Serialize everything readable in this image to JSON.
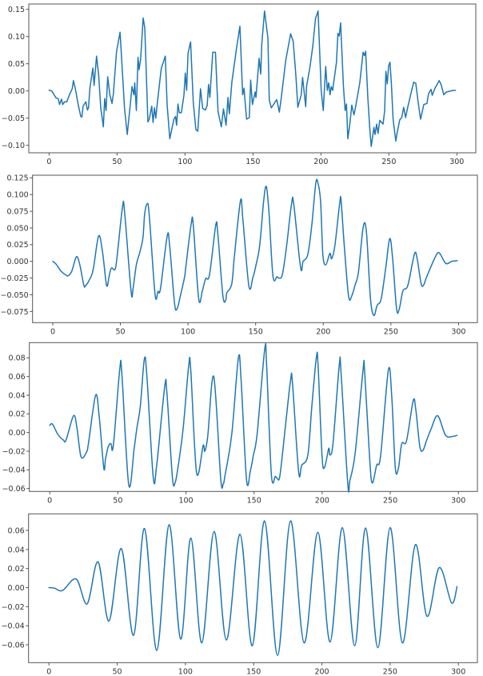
{
  "chart_data": [
    {
      "type": "line",
      "title": "",
      "xlabel": "",
      "ylabel": "",
      "smooth": false,
      "color": "#1f77b4",
      "xlim": [
        -14.95,
        313.95
      ],
      "ylim": [
        -0.1137,
        0.1598
      ],
      "xticks": [
        0,
        50,
        100,
        150,
        200,
        250,
        300
      ],
      "xtick_labels": [
        "0",
        "50",
        "100",
        "150",
        "200",
        "250",
        "300"
      ],
      "yticks": [
        -0.1,
        -0.05,
        0.0,
        0.05,
        0.1,
        0.15
      ],
      "ytick_labels": [
        "−0.10",
        "−0.05",
        "0.00",
        "0.05",
        "0.10",
        "0.15"
      ],
      "x": [
        0,
        2,
        5.1,
        6.7,
        7.7,
        9.1,
        10,
        11.4,
        13,
        15,
        17,
        17.9,
        19.3,
        21.4,
        23.3,
        24.1,
        25,
        27,
        28.2,
        29,
        30,
        32.2,
        33.1,
        34.9,
        36.5,
        38,
        39.9,
        40.9,
        41.9,
        43.1,
        44.7,
        46.3,
        47.3,
        49.6,
        52.2,
        55.5,
        57.5,
        59.8,
        61,
        62.4,
        63,
        64.2,
        65.4,
        66.2,
        67.4,
        69.2,
        70.4,
        72.7,
        73.7,
        75.5,
        76.5,
        77.5,
        78.5,
        79.5,
        82,
        82.6,
        85.5,
        86.8,
        88.8,
        91.8,
        93,
        93.8,
        94.8,
        95.8,
        97.3,
        99.2,
        100.2,
        101.2,
        102.2,
        104.1,
        106.1,
        108,
        109.4,
        111.4,
        113,
        115,
        116.3,
        117.3,
        118.3,
        120.4,
        122.4,
        124.3,
        126.7,
        128.3,
        130.2,
        131.6,
        132.6,
        134.5,
        138,
        140.4,
        142.4,
        143.4,
        145.3,
        147.3,
        148.3,
        149.6,
        151.6,
        152.2,
        154.5,
        155.7,
        156.5,
        158.5,
        161,
        162,
        163.5,
        167.5,
        169.4,
        170.8,
        174.1,
        177.7,
        179.6,
        181.6,
        183,
        185.5,
        186.5,
        188.8,
        189.4,
        192,
        194,
        196,
        197.9,
        200.2,
        201.7,
        203.5,
        204.7,
        205.7,
        206.7,
        207.6,
        208.6,
        211.4,
        212.5,
        213.5,
        214.5,
        216.5,
        217.8,
        218.8,
        219.8,
        221.4,
        222.7,
        224.3,
        225.3,
        228.6,
        231,
        232,
        232.9,
        234.5,
        235.9,
        237,
        239,
        239.8,
        241,
        242,
        243.3,
        245.7,
        246.9,
        247.8,
        248.8,
        249.8,
        250.8,
        251.8,
        253.1,
        255.1,
        256.1,
        258,
        259.4,
        260.9,
        262.3,
        263.5,
        266.3,
        268.2,
        269.8,
        271.4,
        273.3,
        275.7,
        278,
        279.2,
        281,
        281.9,
        283.9,
        285.5,
        287,
        288.4,
        290.4,
        292.3,
        297.2,
        299
      ],
      "y": [
        0.0015,
        0,
        -0.013,
        -0.014,
        -0.025,
        -0.015,
        -0.025,
        -0.02,
        -0.02,
        -0.007,
        0.004,
        0.019,
        0.004,
        -0.025,
        -0.047,
        -0.048,
        -0.028,
        -0.02,
        -0.035,
        -0.031,
        0.005,
        0.042,
        0.01,
        0.064,
        0.028,
        -0.031,
        -0.066,
        -0.014,
        -0.036,
        0.026,
        -0.007,
        -0.023,
        -0.005,
        0.072,
        0.108,
        -0.032,
        -0.08,
        -0.023,
        0.008,
        -0.007,
        0.015,
        -0.036,
        0.062,
        0.039,
        0.06,
        0.134,
        0.116,
        -0.057,
        -0.052,
        -0.028,
        -0.058,
        -0.031,
        -0.05,
        -0.025,
        0.03,
        0.042,
        0.064,
        -0.024,
        -0.088,
        -0.052,
        -0.047,
        -0.063,
        -0.024,
        -0.04,
        -0.04,
        -0.008,
        0.033,
        0.001,
        0.069,
        0.09,
        -0.022,
        -0.071,
        -0.074,
        0.004,
        -0.032,
        -0.035,
        -0.027,
        0.012,
        -0.012,
        0.071,
        0.071,
        -0.038,
        -0.066,
        -0.033,
        -0.063,
        -0.012,
        -0.042,
        0.017,
        0.08,
        0.119,
        -0.007,
        0.005,
        -0.052,
        -0.049,
        0.02,
        -0.025,
        -0.002,
        -0.012,
        0.06,
        0.031,
        0.087,
        0.147,
        0.097,
        -0.017,
        -0.031,
        -0.016,
        -0.039,
        -0.013,
        0.056,
        0.105,
        0.091,
        0.027,
        -0.03,
        -0.007,
        0.025,
        -0.029,
        0.008,
        0.045,
        0.082,
        0.133,
        0.147,
        0.001,
        -0.036,
        0.045,
        0.001,
        0.015,
        -0.007,
        0.008,
        0.001,
        0.052,
        0.106,
        0.101,
        0.125,
        0.011,
        -0.036,
        -0.024,
        -0.088,
        -0.058,
        -0.026,
        -0.044,
        -0.032,
        0.015,
        0.071,
        0.065,
        0.073,
        -0.012,
        -0.068,
        -0.102,
        -0.067,
        -0.08,
        -0.061,
        -0.078,
        -0.054,
        -0.061,
        -0.036,
        0.036,
        0.013,
        0.046,
        0.053,
        0.015,
        -0.052,
        -0.092,
        -0.077,
        -0.053,
        -0.049,
        -0.03,
        -0.049,
        -0.034,
        -0.004,
        0.016,
        0.014,
        -0.018,
        -0.052,
        -0.025,
        -0.023,
        -0.005,
        0.003,
        -0.008,
        0.005,
        0.012,
        0.019,
        0.012,
        -0.007,
        -0.002,
        0.001,
        0.001
      ]
    },
    {
      "type": "line",
      "title": "",
      "xlabel": "",
      "ylabel": "",
      "smooth": true,
      "color": "#1f77b4",
      "xlim": [
        -14.95,
        313.95
      ],
      "ylim": [
        -0.0917,
        0.129
      ],
      "xticks": [
        0,
        50,
        100,
        150,
        200,
        250,
        300
      ],
      "xtick_labels": [
        "0",
        "50",
        "100",
        "150",
        "200",
        "250",
        "300"
      ],
      "yticks": [
        -0.075,
        -0.05,
        -0.025,
        0.0,
        0.025,
        0.05,
        0.075,
        0.1,
        0.125
      ],
      "ytick_labels": [
        "−0.075",
        "−0.050",
        "−0.025",
        "0.000",
        "0.025",
        "0.050",
        "0.075",
        "0.100",
        "0.125"
      ],
      "x": [
        0,
        2.4,
        6.3,
        10.2,
        11.8,
        14.2,
        17.5,
        20,
        23,
        24.4,
        27,
        29.9,
        33.9,
        36.8,
        39.8,
        41.7,
        43.3,
        46,
        47.6,
        51.6,
        53.1,
        57.9,
        59.4,
        61.8,
        64.4,
        66.7,
        67.9,
        69.7,
        71.3,
        75.6,
        77.8,
        79.7,
        84.6,
        86.4,
        90,
        91.9,
        94.3,
        97.4,
        98.4,
        102.4,
        103.9,
        107.9,
        110.6,
        113,
        115.9,
        120.5,
        122,
        125.8,
        128,
        128.7,
        132.3,
        134.3,
        138.8,
        140.6,
        145,
        148,
        150,
        153,
        155.9,
        157.9,
        159.9,
        162.8,
        165.8,
        167.2,
        169.7,
        172.7,
        176.6,
        178.2,
        183.2,
        185.1,
        188.5,
        191.4,
        194.4,
        196,
        198,
        199.7,
        201.9,
        204.9,
        206.2,
        208.6,
        212.2,
        213.2,
        215.5,
        218.7,
        221,
        223.4,
        226,
        229.5,
        231.9,
        234.9,
        237.4,
        239.8,
        242.8,
        246.3,
        249.1,
        251.2,
        254.2,
        256.2,
        258.9,
        262.5,
        267.4,
        269.4,
        272.4,
        274.3,
        276.3,
        282.2,
        285.6,
        290.5,
        295,
        299
      ],
      "y": [
        0,
        -0.004,
        -0.015,
        -0.021,
        -0.021,
        -0.014,
        0.007,
        -0.005,
        -0.036,
        -0.036,
        -0.028,
        -0.012,
        0.038,
        0.014,
        -0.036,
        -0.022,
        -0.01,
        -0.012,
        0.008,
        0.082,
        0.074,
        -0.045,
        -0.04,
        -0.005,
        0.014,
        0.036,
        0.07,
        0.086,
        0.07,
        -0.049,
        -0.045,
        -0.04,
        0.038,
        0.024,
        -0.062,
        -0.071,
        -0.052,
        -0.024,
        -0.008,
        0.057,
        0.054,
        -0.056,
        -0.044,
        -0.026,
        -0.02,
        0.054,
        0.042,
        -0.052,
        -0.057,
        -0.047,
        -0.034,
        0.008,
        0.091,
        0.062,
        -0.037,
        -0.024,
        -0.008,
        0.024,
        0.09,
        0.112,
        0.072,
        -0.022,
        -0.023,
        -0.025,
        -0.02,
        0.02,
        0.087,
        0.085,
        -0.009,
        0,
        0.01,
        0.052,
        0.116,
        0.118,
        0.09,
        0.01,
        -0.005,
        0.012,
        0.004,
        0.024,
        0.088,
        0.09,
        0.024,
        -0.052,
        -0.052,
        -0.036,
        -0.016,
        0.051,
        0.044,
        -0.056,
        -0.081,
        -0.066,
        -0.056,
        -0.008,
        0.034,
        0.006,
        -0.071,
        -0.071,
        -0.044,
        -0.036,
        0.011,
        0.004,
        -0.034,
        -0.035,
        -0.024,
        0.004,
        0.013,
        -0.003,
        0,
        0.001
      ]
    },
    {
      "type": "line",
      "title": "",
      "xlabel": "",
      "ylabel": "",
      "smooth": true,
      "color": "#1f77b4",
      "xlim": [
        -14.95,
        313.95
      ],
      "ylim": [
        -0.0631,
        0.0963
      ],
      "xticks": [
        0,
        50,
        100,
        150,
        200,
        250,
        300
      ],
      "xtick_labels": [
        "0",
        "50",
        "100",
        "150",
        "200",
        "250",
        "300"
      ],
      "yticks": [
        -0.06,
        -0.04,
        -0.02,
        0.0,
        0.02,
        0.04,
        0.06,
        0.08
      ],
      "ytick_labels": [
        "−0.06",
        "−0.04",
        "−0.02",
        "0.00",
        "0.02",
        "0.04",
        "0.06",
        "0.08"
      ],
      "x": [
        0,
        2,
        6,
        10,
        12,
        17.5,
        20,
        23,
        27,
        28.5,
        33.7,
        36.4,
        39.7,
        41,
        43,
        45,
        46,
        47.5,
        51.5,
        53,
        58,
        62,
        64,
        66.5,
        69.5,
        71.4,
        76,
        78.6,
        84.4,
        86,
        90,
        92,
        94.4,
        98,
        102,
        103.5,
        107.8,
        112.6,
        113.8,
        116,
        120.4,
        125.5,
        127.4,
        128.8,
        133.7,
        138.5,
        140.5,
        144.5,
        147.3,
        149.4,
        152.3,
        157.8,
        159.2,
        162.7,
        165.6,
        167,
        169,
        172.9,
        176.8,
        178.2,
        182.7,
        185,
        189.5,
        192.4,
        195.8,
        197,
        199.9,
        201.8,
        204.8,
        205.7,
        208,
        212.6,
        213.9,
        218.8,
        220.4,
        224.3,
        230,
        231.2,
        234.9,
        236.8,
        240,
        242.9,
        248.6,
        251.1,
        253.7,
        256,
        258.4,
        261.9,
        266.8,
        268.7,
        271.7,
        274,
        276.5,
        280,
        284.8,
        290.6,
        296.1,
        299
      ],
      "y": [
        0.0077,
        0.009,
        -0.002,
        -0.008,
        -0.008,
        0.018,
        0.005,
        -0.026,
        -0.021,
        -0.011,
        0.04,
        0.016,
        -0.038,
        -0.028,
        -0.015,
        -0.012,
        -0.019,
        -0.002,
        0.069,
        0.062,
        -0.056,
        -0.017,
        0.005,
        0.028,
        0.079,
        0.059,
        -0.048,
        -0.034,
        0.049,
        0.043,
        -0.047,
        -0.054,
        -0.035,
        0.005,
        0.071,
        0.068,
        -0.043,
        -0.014,
        -0.02,
        -0.004,
        0.06,
        -0.049,
        -0.055,
        -0.045,
        -0.001,
        0.08,
        0.056,
        -0.051,
        -0.041,
        -0.025,
        -0.001,
        0.089,
        0.073,
        -0.045,
        -0.047,
        -0.049,
        -0.046,
        0.005,
        0.056,
        0.053,
        -0.042,
        -0.035,
        -0.024,
        0.028,
        0.081,
        0.072,
        -0.025,
        -0.037,
        -0.017,
        -0.024,
        -0.011,
        0.073,
        0.063,
        -0.055,
        -0.051,
        -0.021,
        0.067,
        0.065,
        -0.029,
        -0.054,
        -0.035,
        -0.025,
        0.067,
        0.038,
        -0.038,
        -0.038,
        -0.012,
        -0.009,
        0.034,
        0.025,
        -0.015,
        -0.019,
        -0.009,
        0.004,
        0.018,
        -0.003,
        -0.004,
        -0.003
      ]
    },
    {
      "type": "line",
      "title": "",
      "xlabel": "",
      "ylabel": "",
      "smooth": true,
      "color": "#1f77b4",
      "xlim": [
        -14.95,
        313.95
      ],
      "ylim": [
        -0.0787,
        0.0774
      ],
      "xticks": [
        0,
        50,
        100,
        150,
        200,
        250,
        300
      ],
      "xtick_labels": [
        "0",
        "50",
        "100",
        "150",
        "200",
        "250",
        "300"
      ],
      "yticks": [
        -0.06,
        -0.04,
        -0.02,
        0.0,
        0.02,
        0.04,
        0.06
      ],
      "ytick_labels": [
        "−0.06",
        "−0.04",
        "−0.02",
        "0.00",
        "0.02",
        "0.04",
        "0.06"
      ],
      "x": [
        0,
        4,
        10,
        20,
        28,
        36,
        44,
        53,
        62,
        70,
        79,
        88,
        96.5,
        104,
        112,
        121,
        130,
        140,
        149,
        158,
        167.5,
        177,
        187,
        197,
        206,
        215,
        224,
        232,
        241,
        250,
        259,
        268.5,
        277,
        286,
        295,
        299
      ],
      "y": [
        0,
        -0.0005,
        -0.003,
        0.009,
        -0.017,
        0.027,
        -0.035,
        0.041,
        -0.05,
        0.062,
        -0.066,
        0.066,
        -0.054,
        0.052,
        -0.058,
        0.059,
        -0.055,
        0.056,
        -0.061,
        0.07,
        -0.071,
        0.07,
        -0.058,
        0.058,
        -0.057,
        0.063,
        -0.061,
        0.0625,
        -0.063,
        0.063,
        -0.058,
        0.045,
        -0.03,
        0.021,
        -0.016,
        0.001
      ]
    }
  ]
}
